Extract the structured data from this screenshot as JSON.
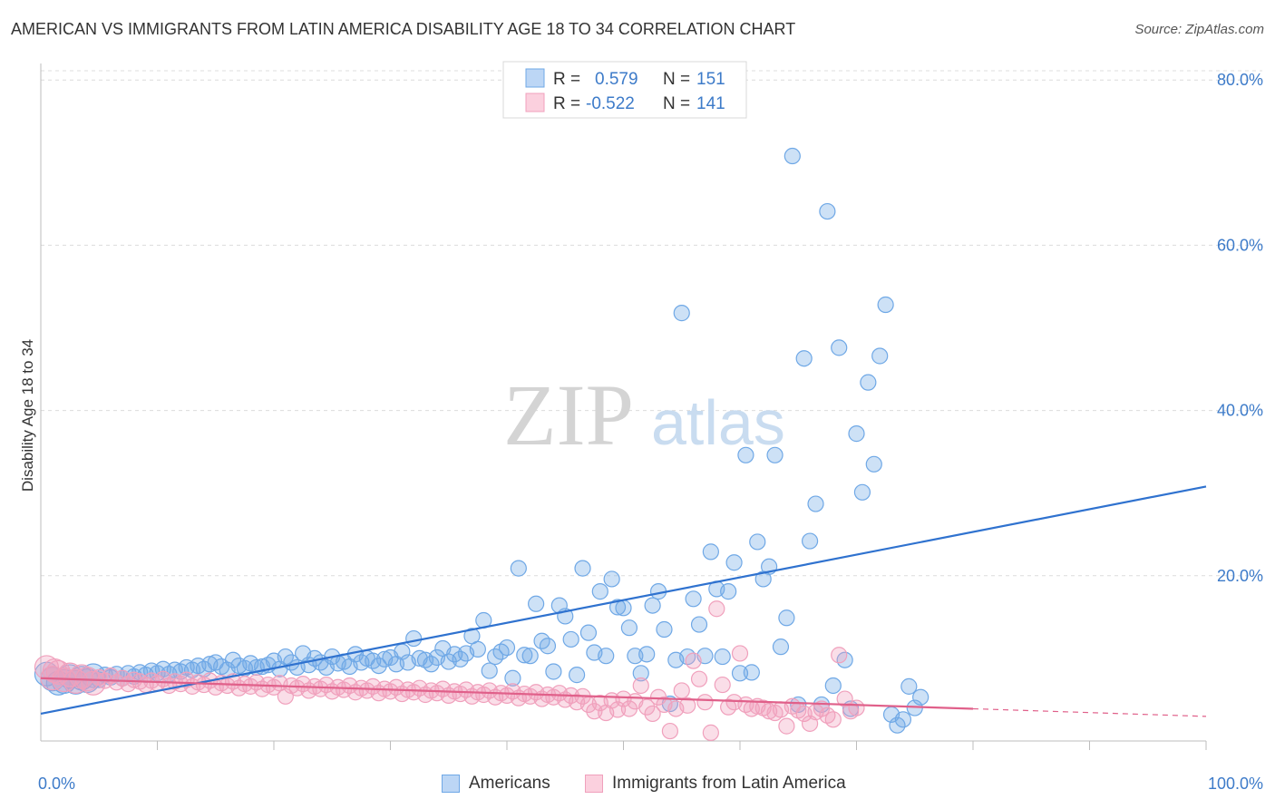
{
  "title": "AMERICAN VS IMMIGRANTS FROM LATIN AMERICA DISABILITY AGE 18 TO 34 CORRELATION CHART",
  "source": "Source: ZipAtlas.com",
  "watermark": {
    "zip": "ZIP",
    "atlas": "atlas"
  },
  "colors": {
    "americans": "#6fa8e6",
    "americans_line": "#2f72cf",
    "immigrants": "#f0a0bc",
    "immigrants_line": "#e0608a",
    "tick": "#3d7bc9"
  },
  "legend": {
    "r_label": "R =",
    "n_label": "N =",
    "americans": {
      "r": "0.579",
      "n": "151"
    },
    "immigrants": {
      "r": "-0.522",
      "n": "141"
    }
  },
  "bottom_legend": {
    "americans": "Americans",
    "immigrants": "Immigrants from Latin America"
  },
  "chart_data": {
    "type": "scatter",
    "xlabel": "",
    "ylabel": "Disability Age 18 to 34",
    "x_tick_labels": [
      "0.0%",
      "100.0%"
    ],
    "y_tick_labels": [
      "20.0%",
      "40.0%",
      "60.0%",
      "80.0%"
    ],
    "y_ticks": [
      20,
      40,
      60,
      80
    ],
    "xlim": [
      0,
      100
    ],
    "ylim": [
      0,
      82
    ],
    "grid": true,
    "legend_position": "top-center",
    "series": [
      {
        "name": "Americans",
        "r": 0.579,
        "n": 151,
        "trend": {
          "x": [
            0,
            100
          ],
          "y": [
            3.3,
            30.8
          ]
        },
        "points": [
          [
            1,
            7.5
          ],
          [
            1.5,
            7
          ],
          [
            2,
            7.2
          ],
          [
            2.5,
            7.8
          ],
          [
            3,
            7.1
          ],
          [
            3.5,
            7.6
          ],
          [
            4,
            7.3
          ],
          [
            4.5,
            7.9
          ],
          [
            5,
            7.4
          ],
          [
            5.5,
            8.0
          ],
          [
            6,
            7.7
          ],
          [
            6.5,
            8.1
          ],
          [
            7,
            7.6
          ],
          [
            7.5,
            8.2
          ],
          [
            8,
            7.8
          ],
          [
            8.5,
            8.3
          ],
          [
            9,
            8.0
          ],
          [
            9.5,
            8.5
          ],
          [
            10,
            8.2
          ],
          [
            10.5,
            8.7
          ],
          [
            11,
            8.1
          ],
          [
            11.5,
            8.6
          ],
          [
            12,
            8.4
          ],
          [
            12.5,
            8.9
          ],
          [
            13,
            8.6
          ],
          [
            13.5,
            9.1
          ],
          [
            14,
            8.7
          ],
          [
            14.5,
            9.3
          ],
          [
            15,
            9.5
          ],
          [
            15.5,
            9.0
          ],
          [
            16,
            8.6
          ],
          [
            16.5,
            9.8
          ],
          [
            17,
            9.1
          ],
          [
            17.5,
            8.8
          ],
          [
            18,
            9.4
          ],
          [
            18.5,
            8.9
          ],
          [
            19,
            9.0
          ],
          [
            19.5,
            9.2
          ],
          [
            20,
            9.7
          ],
          [
            20.5,
            8.7
          ],
          [
            21,
            10.2
          ],
          [
            21.5,
            9.5
          ],
          [
            22,
            8.9
          ],
          [
            22.5,
            10.6
          ],
          [
            23,
            9.2
          ],
          [
            23.5,
            10.0
          ],
          [
            24,
            9.5
          ],
          [
            24.5,
            8.9
          ],
          [
            25,
            10.2
          ],
          [
            25.5,
            9.4
          ],
          [
            26,
            9.6
          ],
          [
            26.5,
            9.0
          ],
          [
            27,
            10.5
          ],
          [
            27.5,
            9.5
          ],
          [
            28,
            10.0
          ],
          [
            28.5,
            9.7
          ],
          [
            29,
            9.1
          ],
          [
            29.5,
            9.9
          ],
          [
            30,
            10.1
          ],
          [
            30.5,
            9.3
          ],
          [
            31,
            10.8
          ],
          [
            31.5,
            9.5
          ],
          [
            32,
            12.4
          ],
          [
            32.5,
            10.0
          ],
          [
            33,
            9.8
          ],
          [
            33.5,
            9.3
          ],
          [
            34,
            10.1
          ],
          [
            34.5,
            11.2
          ],
          [
            35,
            9.6
          ],
          [
            35.5,
            10.5
          ],
          [
            36,
            9.9
          ],
          [
            36.5,
            10.6
          ],
          [
            37,
            12.7
          ],
          [
            37.5,
            11.1
          ],
          [
            38,
            14.6
          ],
          [
            38.5,
            8.5
          ],
          [
            39,
            10.2
          ],
          [
            39.5,
            10.8
          ],
          [
            40,
            11.3
          ],
          [
            40.5,
            7.6
          ],
          [
            41,
            20.9
          ],
          [
            41.5,
            10.4
          ],
          [
            42,
            10.3
          ],
          [
            42.5,
            16.6
          ],
          [
            43,
            12.1
          ],
          [
            43.5,
            11.5
          ],
          [
            44,
            8.4
          ],
          [
            44.5,
            16.4
          ],
          [
            45,
            15.1
          ],
          [
            45.5,
            12.3
          ],
          [
            46,
            8.0
          ],
          [
            46.5,
            20.9
          ],
          [
            47,
            13.1
          ],
          [
            47.5,
            10.7
          ],
          [
            48,
            18.1
          ],
          [
            48.5,
            10.3
          ],
          [
            49,
            19.6
          ],
          [
            49.5,
            16.2
          ],
          [
            50,
            16.1
          ],
          [
            50.5,
            13.7
          ],
          [
            51,
            10.3
          ],
          [
            51.5,
            8.2
          ],
          [
            52,
            10.5
          ],
          [
            52.5,
            16.4
          ],
          [
            53,
            18.1
          ],
          [
            53.5,
            13.5
          ],
          [
            54,
            4.5
          ],
          [
            54.5,
            9.8
          ],
          [
            55,
            51.8
          ],
          [
            55.5,
            10.2
          ],
          [
            56,
            17.2
          ],
          [
            56.5,
            14.1
          ],
          [
            57,
            10.3
          ],
          [
            57.5,
            22.9
          ],
          [
            58,
            18.4
          ],
          [
            58.5,
            10.2
          ],
          [
            59,
            18.1
          ],
          [
            59.5,
            21.6
          ],
          [
            60,
            8.2
          ],
          [
            60.5,
            34.6
          ],
          [
            61,
            8.3
          ],
          [
            61.5,
            24.1
          ],
          [
            62,
            19.6
          ],
          [
            62.5,
            21.1
          ],
          [
            63,
            34.6
          ],
          [
            63.5,
            11.4
          ],
          [
            64,
            14.9
          ],
          [
            64.5,
            70.8
          ],
          [
            65,
            4.4
          ],
          [
            65.5,
            46.3
          ],
          [
            66,
            24.2
          ],
          [
            66.5,
            28.7
          ],
          [
            67,
            4.4
          ],
          [
            67.5,
            64.1
          ],
          [
            68,
            6.7
          ],
          [
            68.5,
            47.6
          ],
          [
            69,
            9.8
          ],
          [
            69.5,
            3.9
          ],
          [
            70,
            37.2
          ],
          [
            70.5,
            30.1
          ],
          [
            71,
            43.4
          ],
          [
            71.5,
            33.5
          ],
          [
            72,
            46.6
          ],
          [
            72.5,
            52.8
          ],
          [
            73,
            3.2
          ],
          [
            73.5,
            1.9
          ],
          [
            74,
            2.6
          ],
          [
            74.5,
            6.6
          ],
          [
            75,
            4.0
          ],
          [
            75.5,
            5.3
          ],
          [
            0.5,
            8.1
          ]
        ]
      },
      {
        "name": "Immigrants from Latin America",
        "r": -0.522,
        "n": 141,
        "trend": {
          "x": [
            0,
            80
          ],
          "y": [
            7.6,
            3.9
          ]
        },
        "points": [
          [
            0.5,
            8.9
          ],
          [
            1,
            7.6
          ],
          [
            1.5,
            8.3
          ],
          [
            2,
            7.4
          ],
          [
            2.5,
            8.0
          ],
          [
            3,
            7.2
          ],
          [
            3.5,
            7.8
          ],
          [
            4,
            7.5
          ],
          [
            4.5,
            7.0
          ],
          [
            5,
            7.7
          ],
          [
            5.5,
            7.3
          ],
          [
            6,
            7.9
          ],
          [
            6.5,
            7.1
          ],
          [
            7,
            7.6
          ],
          [
            7.5,
            6.9
          ],
          [
            8,
            7.4
          ],
          [
            8.5,
            7.2
          ],
          [
            9,
            6.8
          ],
          [
            9.5,
            7.3
          ],
          [
            10,
            7.0
          ],
          [
            10.5,
            7.5
          ],
          [
            11,
            6.7
          ],
          [
            11.5,
            7.2
          ],
          [
            12,
            6.9
          ],
          [
            12.5,
            7.4
          ],
          [
            13,
            6.6
          ],
          [
            13.5,
            7.1
          ],
          [
            14,
            6.8
          ],
          [
            14.5,
            7.3
          ],
          [
            15,
            6.5
          ],
          [
            15.5,
            7.0
          ],
          [
            16,
            6.7
          ],
          [
            16.5,
            7.2
          ],
          [
            17,
            6.4
          ],
          [
            17.5,
            6.9
          ],
          [
            18,
            6.6
          ],
          [
            18.5,
            7.1
          ],
          [
            19,
            6.3
          ],
          [
            19.5,
            6.8
          ],
          [
            20,
            6.5
          ],
          [
            20.5,
            7.0
          ],
          [
            21,
            5.4
          ],
          [
            21.5,
            6.7
          ],
          [
            22,
            6.4
          ],
          [
            22.5,
            6.9
          ],
          [
            23,
            6.1
          ],
          [
            23.5,
            6.6
          ],
          [
            24,
            6.3
          ],
          [
            24.5,
            6.8
          ],
          [
            25,
            6.0
          ],
          [
            25.5,
            6.5
          ],
          [
            26,
            6.2
          ],
          [
            26.5,
            6.7
          ],
          [
            27,
            5.9
          ],
          [
            27.5,
            6.4
          ],
          [
            28,
            6.1
          ],
          [
            28.5,
            6.6
          ],
          [
            29,
            5.8
          ],
          [
            29.5,
            6.3
          ],
          [
            30,
            6.0
          ],
          [
            30.5,
            6.5
          ],
          [
            31,
            5.7
          ],
          [
            31.5,
            6.2
          ],
          [
            32,
            5.9
          ],
          [
            32.5,
            6.4
          ],
          [
            33,
            5.6
          ],
          [
            33.5,
            6.1
          ],
          [
            34,
            5.8
          ],
          [
            34.5,
            6.3
          ],
          [
            35,
            5.5
          ],
          [
            35.5,
            6.0
          ],
          [
            36,
            5.7
          ],
          [
            36.5,
            6.2
          ],
          [
            37,
            5.4
          ],
          [
            37.5,
            5.9
          ],
          [
            38,
            5.6
          ],
          [
            38.5,
            6.1
          ],
          [
            39,
            5.3
          ],
          [
            39.5,
            5.8
          ],
          [
            40,
            5.5
          ],
          [
            40.5,
            6.0
          ],
          [
            41,
            5.2
          ],
          [
            41.5,
            5.7
          ],
          [
            42,
            5.4
          ],
          [
            42.5,
            5.9
          ],
          [
            43,
            5.1
          ],
          [
            43.5,
            5.6
          ],
          [
            44,
            5.3
          ],
          [
            44.5,
            5.8
          ],
          [
            45,
            5.0
          ],
          [
            45.5,
            5.5
          ],
          [
            46,
            4.7
          ],
          [
            46.5,
            5.4
          ],
          [
            47,
            4.4
          ],
          [
            47.5,
            3.6
          ],
          [
            48,
            4.6
          ],
          [
            48.5,
            3.4
          ],
          [
            49,
            4.9
          ],
          [
            49.5,
            3.8
          ],
          [
            50,
            5.1
          ],
          [
            50.5,
            3.9
          ],
          [
            51,
            4.8
          ],
          [
            51.5,
            6.7
          ],
          [
            52,
            4.1
          ],
          [
            52.5,
            3.3
          ],
          [
            53,
            5.3
          ],
          [
            53.5,
            4.4
          ],
          [
            54,
            1.2
          ],
          [
            54.5,
            3.9
          ],
          [
            55,
            6.1
          ],
          [
            55.5,
            4.3
          ],
          [
            56,
            9.7
          ],
          [
            56.5,
            7.5
          ],
          [
            57,
            4.7
          ],
          [
            57.5,
            1.0
          ],
          [
            58,
            16.0
          ],
          [
            58.5,
            6.8
          ],
          [
            59,
            4.1
          ],
          [
            59.5,
            4.7
          ],
          [
            60,
            10.6
          ],
          [
            60.5,
            4.4
          ],
          [
            61,
            3.9
          ],
          [
            61.5,
            4.2
          ],
          [
            62,
            4.0
          ],
          [
            62.5,
            3.6
          ],
          [
            63,
            3.4
          ],
          [
            63.5,
            3.8
          ],
          [
            64,
            1.8
          ],
          [
            64.5,
            4.2
          ],
          [
            65,
            3.7
          ],
          [
            65.5,
            3.3
          ],
          [
            66,
            2.1
          ],
          [
            66.5,
            3.5
          ],
          [
            67,
            3.9
          ],
          [
            67.5,
            3.1
          ],
          [
            68,
            2.6
          ],
          [
            68.5,
            10.4
          ],
          [
            69,
            5.1
          ],
          [
            69.5,
            3.6
          ],
          [
            70,
            4.0
          ],
          [
            1.2,
            8.5
          ]
        ]
      }
    ]
  }
}
